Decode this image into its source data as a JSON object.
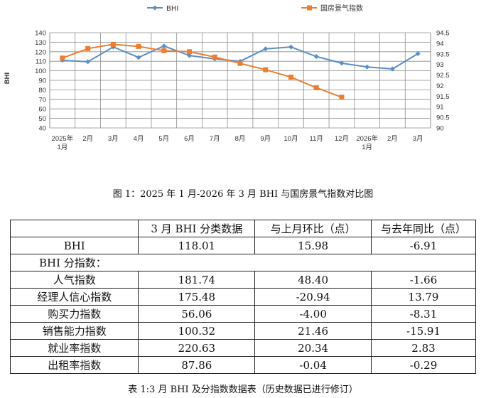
{
  "chart_data": {
    "type": "line",
    "title": "",
    "legend_position": "top",
    "legend": [
      "BHI",
      "国房景气指数"
    ],
    "ylabel": "BHI",
    "ylabel_right": "",
    "xlabel": "",
    "ylim": [
      40,
      140
    ],
    "yticks": [
      40,
      50,
      60,
      70,
      80,
      90,
      100,
      110,
      120,
      130,
      140
    ],
    "ylim_right": [
      90,
      94.5
    ],
    "yticks_right": [
      90,
      90.5,
      91,
      91.5,
      92,
      92.5,
      93,
      93.5,
      94,
      94.5
    ],
    "grid": true,
    "categories": [
      "2025年\n1月",
      "2月",
      "3月",
      "4月",
      "5月",
      "6月",
      "7月",
      "8月",
      "9月",
      "10月",
      "11月",
      "12月",
      "2026年\n1月",
      "2月",
      "3月"
    ],
    "series": [
      {
        "name": "BHI",
        "axis": "left",
        "color": "#5b8fc4",
        "marker": "diamond",
        "values": [
          111,
          109.5,
          125,
          114,
          126,
          116,
          112.5,
          110,
          123,
          125,
          115,
          108,
          104,
          102,
          118.01
        ]
      },
      {
        "name": "国房景气指数",
        "axis": "right",
        "color": "#ed7d31",
        "marker": "square",
        "values": [
          93.3,
          93.75,
          93.95,
          93.85,
          93.65,
          93.6,
          93.35,
          93.05,
          92.75,
          92.4,
          91.9,
          91.45,
          null,
          null,
          null
        ]
      }
    ]
  },
  "figure_caption": "图 1：2025 年 1 月-2026 年 3 月 BHI 与国房景气指数对比图",
  "table": {
    "headers": [
      "",
      "3 月 BHI 分类数据",
      "与上月环比（点）",
      "与去年同比（点）"
    ],
    "bhi_row": [
      "BHI",
      "118.01",
      "15.98",
      "-6.91"
    ],
    "section_label": "BHI 分指数：",
    "rows": [
      [
        "人气指数",
        "181.74",
        "48.40",
        "-1.66"
      ],
      [
        "经理人信心指数",
        "175.48",
        "-20.94",
        "13.79"
      ],
      [
        "购买力指数",
        "56.06",
        "-4.00",
        "-8.31"
      ],
      [
        "销售能力指数",
        "100.32",
        "21.46",
        "-15.91"
      ],
      [
        "就业率指数",
        "220.63",
        "20.34",
        "2.83"
      ],
      [
        "出租率指数",
        "87.86",
        "-0.04",
        "-0.29"
      ]
    ]
  },
  "table_caption": "表 1:3 月 BHI 及分指数数据表（历史数据已进行修订）"
}
